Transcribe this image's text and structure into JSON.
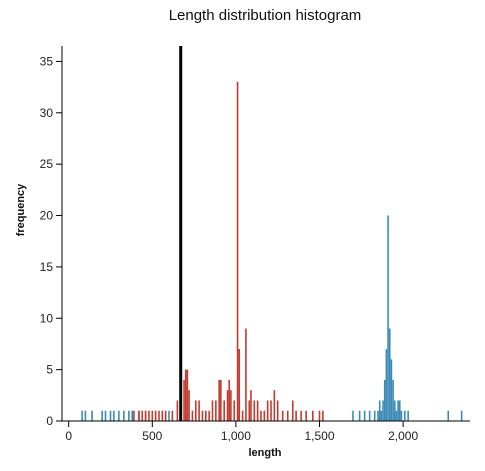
{
  "chart_data": {
    "type": "bar",
    "title": "Length distribution histogram",
    "xlabel": "length",
    "ylabel": "frequency",
    "xlim": [
      -40,
      2400
    ],
    "ylim": [
      0,
      36.5
    ],
    "x_ticks": [
      0,
      500,
      1000,
      1500,
      2000
    ],
    "x_tick_labels": [
      "0",
      "500",
      "1,000",
      "1,500",
      "2,000"
    ],
    "y_ticks": [
      0,
      5,
      10,
      15,
      20,
      25,
      30,
      35
    ],
    "y_tick_labels": [
      "0",
      "5",
      "10",
      "15",
      "20",
      "25",
      "30",
      "35"
    ],
    "marker_line": {
      "x": 670,
      "color": "#000000"
    },
    "bin_width": 10,
    "series": [
      {
        "color": "#3b8ab5",
        "points": [
          [
            80,
            1
          ],
          [
            100,
            1
          ],
          [
            140,
            1
          ],
          [
            200,
            1
          ],
          [
            220,
            1
          ],
          [
            250,
            1
          ],
          [
            270,
            1
          ],
          [
            300,
            1
          ],
          [
            330,
            1
          ],
          [
            360,
            1
          ],
          [
            380,
            1
          ],
          [
            420,
            1
          ],
          [
            460,
            1
          ],
          [
            600,
            1
          ],
          [
            1700,
            1
          ],
          [
            1740,
            1
          ],
          [
            1770,
            1
          ],
          [
            1800,
            1
          ],
          [
            1830,
            1
          ],
          [
            1850,
            1
          ],
          [
            1860,
            2
          ],
          [
            1870,
            1
          ],
          [
            1880,
            2
          ],
          [
            1890,
            4
          ],
          [
            1900,
            7
          ],
          [
            1910,
            20
          ],
          [
            1920,
            9
          ],
          [
            1930,
            6
          ],
          [
            1940,
            4
          ],
          [
            1950,
            2
          ],
          [
            1960,
            1
          ],
          [
            1970,
            2
          ],
          [
            1980,
            2
          ],
          [
            1990,
            1
          ],
          [
            2010,
            1
          ],
          [
            2030,
            1
          ],
          [
            2270,
            1
          ],
          [
            2350,
            1
          ]
        ]
      },
      {
        "color": "#c23b2e",
        "points": [
          [
            390,
            1
          ],
          [
            420,
            1
          ],
          [
            440,
            1
          ],
          [
            460,
            1
          ],
          [
            480,
            1
          ],
          [
            500,
            1
          ],
          [
            520,
            1
          ],
          [
            540,
            1
          ],
          [
            560,
            1
          ],
          [
            580,
            1
          ],
          [
            620,
            1
          ],
          [
            650,
            2
          ],
          [
            690,
            4
          ],
          [
            700,
            5
          ],
          [
            710,
            5
          ],
          [
            720,
            3
          ],
          [
            740,
            1
          ],
          [
            760,
            2
          ],
          [
            780,
            2
          ],
          [
            800,
            1
          ],
          [
            820,
            1
          ],
          [
            840,
            1
          ],
          [
            860,
            2
          ],
          [
            880,
            2
          ],
          [
            900,
            4
          ],
          [
            910,
            4
          ],
          [
            930,
            2
          ],
          [
            950,
            3
          ],
          [
            960,
            4
          ],
          [
            970,
            3
          ],
          [
            990,
            2
          ],
          [
            1010,
            33
          ],
          [
            1020,
            7
          ],
          [
            1040,
            1
          ],
          [
            1060,
            9
          ],
          [
            1080,
            2
          ],
          [
            1090,
            3
          ],
          [
            1110,
            2
          ],
          [
            1130,
            2
          ],
          [
            1150,
            1
          ],
          [
            1170,
            1
          ],
          [
            1190,
            2
          ],
          [
            1210,
            2
          ],
          [
            1230,
            3
          ],
          [
            1250,
            2
          ],
          [
            1280,
            1
          ],
          [
            1310,
            1
          ],
          [
            1340,
            2
          ],
          [
            1360,
            1
          ],
          [
            1390,
            1
          ],
          [
            1420,
            1
          ],
          [
            1460,
            1
          ],
          [
            1500,
            1
          ],
          [
            1520,
            1
          ]
        ]
      }
    ]
  }
}
